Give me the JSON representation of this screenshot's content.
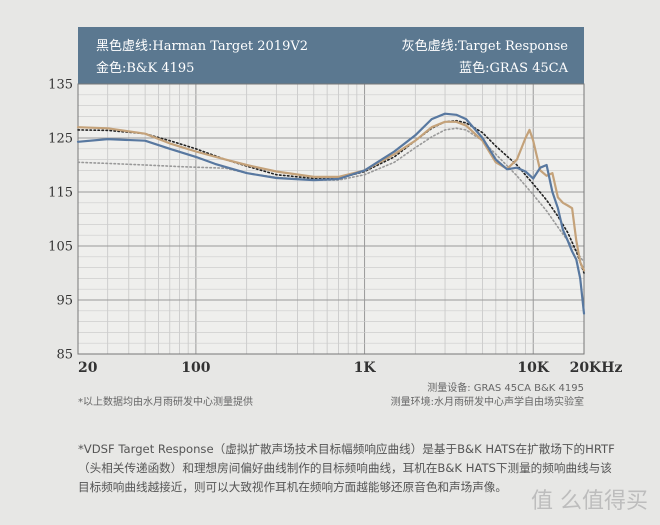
{
  "header": {
    "black_dashed": "黑色虚线:Harman Target 2019V2",
    "gold": "金色:B&K 4195",
    "gray_dashed": "灰色虚线:Target Response",
    "blue": "蓝色:GRAS 45CA"
  },
  "notes": {
    "left": "*以上数据均由水月雨研发中心测量提供",
    "right_line1": "测量设备:  GRAS 45CA    B&K 4195",
    "right_line2": "测量环境:水月雨研发中心声学自由场实验室"
  },
  "footer": {
    "text": "*VDSF Target Response（虚拟扩散声场技术目标幅频响应曲线）是基于B&K HATS在扩散场下的HRTF（头相关传递函数）和理想房间偏好曲线制作的目标频响曲线，耳机在B&K HATS下测量的频响曲线与该目标频响曲线越接近，则可以大致视作耳机在频响方面越能够还原音色和声场声像。"
  },
  "watermark": "值 么值得买",
  "colors": {
    "header": "#5b7890",
    "blue": "#5878a0",
    "gold": "#c4a27a",
    "black_dashed": "#222222",
    "gray_dashed": "#999999",
    "background": "#e7e7e5"
  },
  "chart_data": {
    "type": "line",
    "x_scale": "log",
    "xlim": [
      20,
      20000
    ],
    "ylim": [
      85,
      135
    ],
    "x_ticks": [
      20,
      100,
      1000,
      10000,
      20000
    ],
    "x_tick_labels": [
      "20",
      "100",
      "1K",
      "10K",
      "20KHz"
    ],
    "y_ticks": [
      85,
      95,
      105,
      115,
      125,
      135
    ],
    "y_tick_labels": [
      "85",
      "95",
      "105",
      "115",
      "125",
      "135"
    ],
    "grid": true,
    "series": [
      {
        "name": "GRAS 45CA",
        "color": "#5878a0",
        "style": "solid",
        "points": [
          [
            20,
            124.3
          ],
          [
            30,
            124.8
          ],
          [
            50,
            124.5
          ],
          [
            70,
            123
          ],
          [
            100,
            121.5
          ],
          [
            130,
            120.2
          ],
          [
            200,
            118.5
          ],
          [
            300,
            117.6
          ],
          [
            500,
            117.2
          ],
          [
            700,
            117.4
          ],
          [
            1000,
            119
          ],
          [
            1500,
            122.5
          ],
          [
            2000,
            125.5
          ],
          [
            2500,
            128.5
          ],
          [
            3000,
            129.5
          ],
          [
            3500,
            129.3
          ],
          [
            4000,
            128.5
          ],
          [
            5000,
            125
          ],
          [
            6000,
            121
          ],
          [
            7000,
            119.2
          ],
          [
            8000,
            119.5
          ],
          [
            9000,
            118.8
          ],
          [
            10000,
            117.5
          ],
          [
            11000,
            119.5
          ],
          [
            12000,
            120
          ],
          [
            13000,
            115
          ],
          [
            14000,
            112
          ],
          [
            15000,
            108
          ],
          [
            16000,
            106
          ],
          [
            17000,
            104
          ],
          [
            18000,
            102.5
          ],
          [
            19000,
            99
          ],
          [
            20000,
            92.5
          ]
        ]
      },
      {
        "name": "B&K 4195",
        "color": "#c4a27a",
        "style": "solid",
        "points": [
          [
            20,
            127
          ],
          [
            30,
            126.8
          ],
          [
            50,
            125.8
          ],
          [
            70,
            124
          ],
          [
            100,
            122.5
          ],
          [
            150,
            121
          ],
          [
            200,
            120
          ],
          [
            300,
            118.8
          ],
          [
            500,
            117.8
          ],
          [
            700,
            117.8
          ],
          [
            1000,
            119
          ],
          [
            1500,
            122
          ],
          [
            2000,
            124.5
          ],
          [
            2500,
            127
          ],
          [
            3000,
            128
          ],
          [
            3500,
            128
          ],
          [
            4000,
            127.3
          ],
          [
            5000,
            124.5
          ],
          [
            6000,
            120.5
          ],
          [
            7000,
            119.3
          ],
          [
            8000,
            121
          ],
          [
            9000,
            125
          ],
          [
            9500,
            126.5
          ],
          [
            10000,
            124.5
          ],
          [
            11000,
            119
          ],
          [
            12000,
            118
          ],
          [
            13000,
            118.5
          ],
          [
            14000,
            114
          ],
          [
            15000,
            113
          ],
          [
            16000,
            112.5
          ],
          [
            17000,
            112
          ],
          [
            18000,
            106
          ],
          [
            19000,
            102
          ],
          [
            20000,
            100.5
          ]
        ]
      },
      {
        "name": "Harman Target 2019V2",
        "color": "#222222",
        "style": "dotted",
        "points": [
          [
            20,
            126.5
          ],
          [
            30,
            126.4
          ],
          [
            50,
            125.8
          ],
          [
            70,
            124.5
          ],
          [
            100,
            123
          ],
          [
            150,
            121
          ],
          [
            200,
            119.8
          ],
          [
            300,
            118.2
          ],
          [
            500,
            117.5
          ],
          [
            700,
            117.5
          ],
          [
            1000,
            118.8
          ],
          [
            1500,
            121.5
          ],
          [
            2000,
            124.5
          ],
          [
            2500,
            126.8
          ],
          [
            3000,
            128
          ],
          [
            3500,
            128.2
          ],
          [
            4000,
            127.8
          ],
          [
            5000,
            126
          ],
          [
            6000,
            123.5
          ],
          [
            8000,
            120
          ],
          [
            10000,
            116.5
          ],
          [
            12000,
            113.5
          ],
          [
            14000,
            110.5
          ],
          [
            16000,
            107.5
          ],
          [
            18000,
            104
          ],
          [
            20000,
            100
          ]
        ]
      },
      {
        "name": "Target Response",
        "color": "#999999",
        "style": "dotted",
        "points": [
          [
            20,
            120.5
          ],
          [
            30,
            120.3
          ],
          [
            50,
            120
          ],
          [
            80,
            119.7
          ],
          [
            100,
            119.6
          ],
          [
            150,
            119.4
          ],
          [
            200,
            118.5
          ],
          [
            300,
            117.7
          ],
          [
            500,
            117.2
          ],
          [
            700,
            117.2
          ],
          [
            1000,
            118.2
          ],
          [
            1500,
            120.5
          ],
          [
            2000,
            123.2
          ],
          [
            2500,
            125.2
          ],
          [
            3000,
            126.5
          ],
          [
            3500,
            126.8
          ],
          [
            4000,
            126.5
          ],
          [
            5000,
            124.5
          ],
          [
            6000,
            122
          ],
          [
            8000,
            118
          ],
          [
            10000,
            114.5
          ],
          [
            12000,
            111.5
          ],
          [
            14000,
            108.5
          ],
          [
            16000,
            106
          ],
          [
            18000,
            104
          ],
          [
            20000,
            102
          ]
        ]
      }
    ]
  }
}
